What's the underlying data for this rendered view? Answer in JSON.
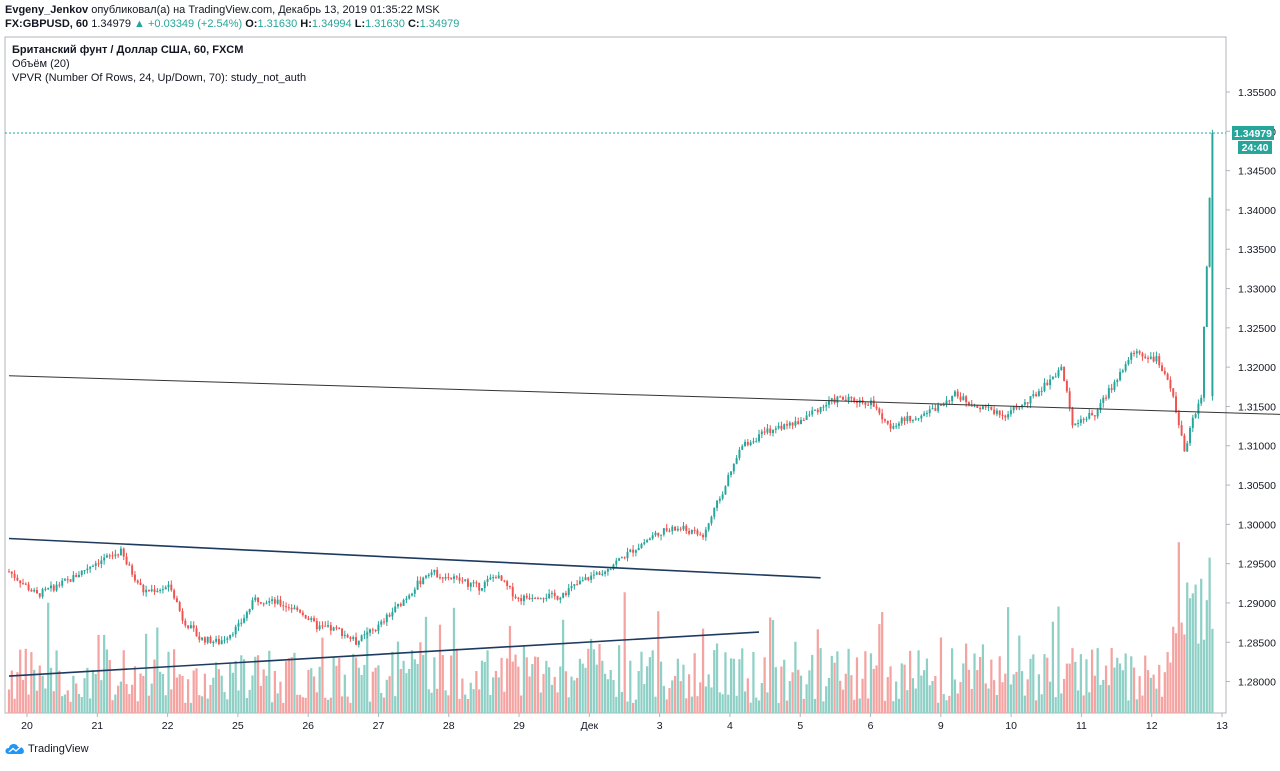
{
  "header": {
    "author": "Evgeny_Jenkov",
    "published_text": "опубликовал(а) на TradingView.com, Декабрь 13, 2019 01:35:22 MSK",
    "symbol": "FX:GBPUSD, 60",
    "last": "1.34979",
    "change": "+0.03349 (+2.54%)",
    "o_label": "O:",
    "o": "1.31630",
    "h_label": "H:",
    "h": "1.34994",
    "l_label": "L:",
    "l": "1.31630",
    "c_label": "C:",
    "c": "1.34979"
  },
  "legend": {
    "title": "Британский фунт / Доллар США, 60, FXCM",
    "volume": "Объём (20)",
    "vpvr": "VPVR (Number Of Rows, 24, Up/Down, 70): study_not_auth"
  },
  "price_tag": {
    "value": "1.34979",
    "countdown": "24:40"
  },
  "footer": {
    "brand": "TradingView",
    "icon": "tradingview-cloud-icon"
  },
  "colors": {
    "up": "#26a69a",
    "down": "#ef5350",
    "vol_up": "#8fd0c6",
    "vol_down": "#f4a3a1",
    "trend": "#1e3a5f",
    "resistance": "#333333"
  },
  "chart_data": {
    "type": "candlestick",
    "symbol": "FX:GBPUSD",
    "interval": "60",
    "y_ticks": [
      "1.35500",
      "1.35000",
      "1.34500",
      "1.34000",
      "1.33500",
      "1.33000",
      "1.32500",
      "1.32000",
      "1.31500",
      "1.31000",
      "1.30500",
      "1.30000",
      "1.29500",
      "1.29000",
      "1.28500",
      "1.28000"
    ],
    "ylim": [
      1.276,
      1.362
    ],
    "x_ticks": [
      "20",
      "21",
      "22",
      "25",
      "26",
      "27",
      "28",
      "29",
      "Дек",
      "3",
      "4",
      "5",
      "6",
      "9",
      "10",
      "11",
      "12",
      "13"
    ],
    "price_path": [
      [
        0,
        1.294
      ],
      [
        10,
        1.291
      ],
      [
        22,
        1.293
      ],
      [
        30,
        1.295
      ],
      [
        40,
        1.2965
      ],
      [
        42,
        1.295
      ],
      [
        48,
        1.2915
      ],
      [
        58,
        1.292
      ],
      [
        62,
        1.288
      ],
      [
        68,
        1.2855
      ],
      [
        75,
        1.285
      ],
      [
        82,
        1.287
      ],
      [
        88,
        1.2905
      ],
      [
        96,
        1.29
      ],
      [
        104,
        1.289
      ],
      [
        110,
        1.287
      ],
      [
        118,
        1.2865
      ],
      [
        124,
        1.285
      ],
      [
        132,
        1.287
      ],
      [
        140,
        1.29
      ],
      [
        150,
        1.294
      ],
      [
        160,
        1.293
      ],
      [
        168,
        1.292
      ],
      [
        174,
        1.2935
      ],
      [
        182,
        1.2905
      ],
      [
        188,
        1.291
      ],
      [
        196,
        1.2908
      ],
      [
        206,
        1.293
      ],
      [
        214,
        1.2945
      ],
      [
        224,
        1.297
      ],
      [
        232,
        1.299
      ],
      [
        240,
        1.2995
      ],
      [
        248,
        1.2985
      ],
      [
        256,
        1.305
      ],
      [
        262,
        1.31
      ],
      [
        272,
        1.312
      ],
      [
        282,
        1.313
      ],
      [
        288,
        1.3145
      ],
      [
        296,
        1.316
      ],
      [
        308,
        1.3155
      ],
      [
        314,
        1.3125
      ],
      [
        322,
        1.3135
      ],
      [
        330,
        1.3145
      ],
      [
        338,
        1.3165
      ],
      [
        346,
        1.315
      ],
      [
        356,
        1.314
      ],
      [
        364,
        1.3155
      ],
      [
        372,
        1.3185
      ],
      [
        376,
        1.32
      ],
      [
        380,
        1.313
      ],
      [
        388,
        1.314
      ],
      [
        394,
        1.3175
      ],
      [
        402,
        1.322
      ],
      [
        410,
        1.321
      ],
      [
        416,
        1.3165
      ],
      [
        420,
        1.309
      ],
      [
        423,
        1.3135
      ],
      [
        426,
        1.3163
      ],
      [
        430,
        1.3498
      ]
    ],
    "trendlines": [
      {
        "name": "upper",
        "points": [
          [
            0,
            1.2982
          ],
          [
            290,
            1.2932
          ]
        ]
      },
      {
        "name": "lower",
        "points": [
          [
            0,
            1.2807
          ],
          [
            268,
            1.2863
          ]
        ]
      },
      {
        "name": "resistance",
        "points": [
          [
            0,
            1.3189
          ],
          [
            472,
            1.3138
          ]
        ]
      }
    ],
    "last_price": 1.34979,
    "volume_panel": true
  }
}
